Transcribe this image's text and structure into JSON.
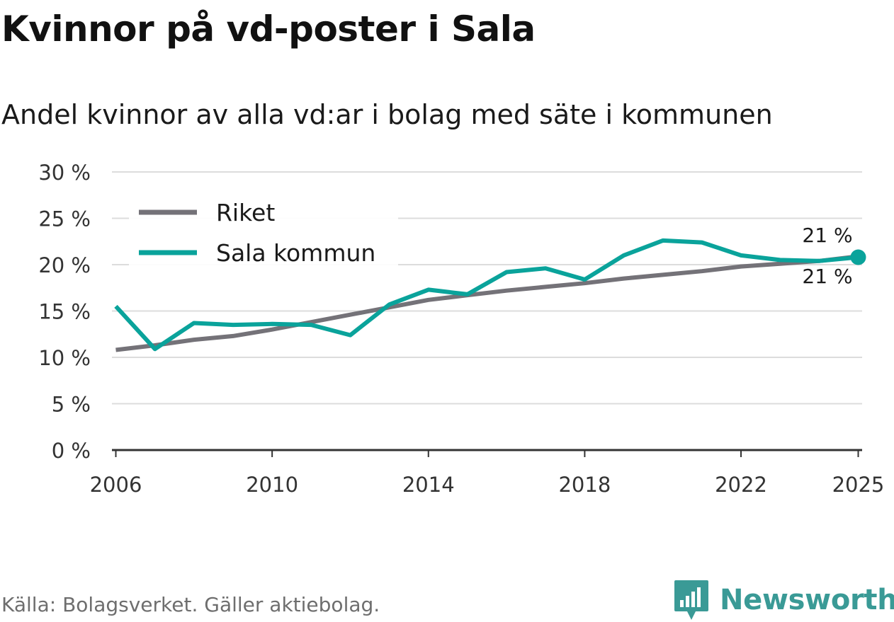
{
  "header": {
    "title": "Kvinnor på vd-poster i Sala",
    "subtitle": "Andel kvinnor av alla vd:ar i bolag med säte i kommunen"
  },
  "footer": {
    "source": "Källa: Bolagsverket. Gäller aktiebolag.",
    "brand": "Newsworthy"
  },
  "colors": {
    "riket": "#747278",
    "sala": "#0aa39b",
    "grid": "#dcdcdc",
    "axis": "#333333",
    "brand": "#3a9a96"
  },
  "chart_data": {
    "type": "line",
    "title": "Andel kvinnor av alla vd:ar i bolag med säte i kommunen",
    "xlabel": "",
    "ylabel": "",
    "xlim": [
      2005.9,
      2025.1
    ],
    "ylim": [
      0,
      30
    ],
    "x_ticks": [
      2006,
      2010,
      2014,
      2018,
      2022,
      2025
    ],
    "y_ticks": [
      0,
      5,
      10,
      15,
      20,
      25,
      30
    ],
    "y_tick_labels": [
      "0 %",
      "5 %",
      "10 %",
      "15 %",
      "20 %",
      "25 %",
      "30 %"
    ],
    "grid": true,
    "legend_position": "top-left",
    "x": [
      2006,
      2007,
      2008,
      2009,
      2010,
      2011,
      2012,
      2013,
      2014,
      2015,
      2016,
      2017,
      2018,
      2019,
      2020,
      2021,
      2022,
      2023,
      2024,
      2025
    ],
    "series": [
      {
        "name": "Riket",
        "color_key": "riket",
        "values": [
          10.8,
          11.3,
          11.9,
          12.3,
          13.0,
          13.8,
          14.6,
          15.4,
          16.2,
          16.7,
          17.2,
          17.6,
          18.0,
          18.5,
          18.9,
          19.3,
          19.8,
          20.1,
          20.4,
          20.9
        ],
        "end_label": "21 %"
      },
      {
        "name": "Sala kommun",
        "color_key": "sala",
        "values": [
          15.5,
          10.9,
          13.7,
          13.5,
          13.6,
          13.5,
          12.4,
          15.7,
          17.3,
          16.8,
          19.2,
          19.6,
          18.4,
          21.0,
          22.6,
          22.4,
          21.0,
          20.5,
          20.4,
          20.8
        ],
        "end_label": "21 %"
      }
    ]
  }
}
